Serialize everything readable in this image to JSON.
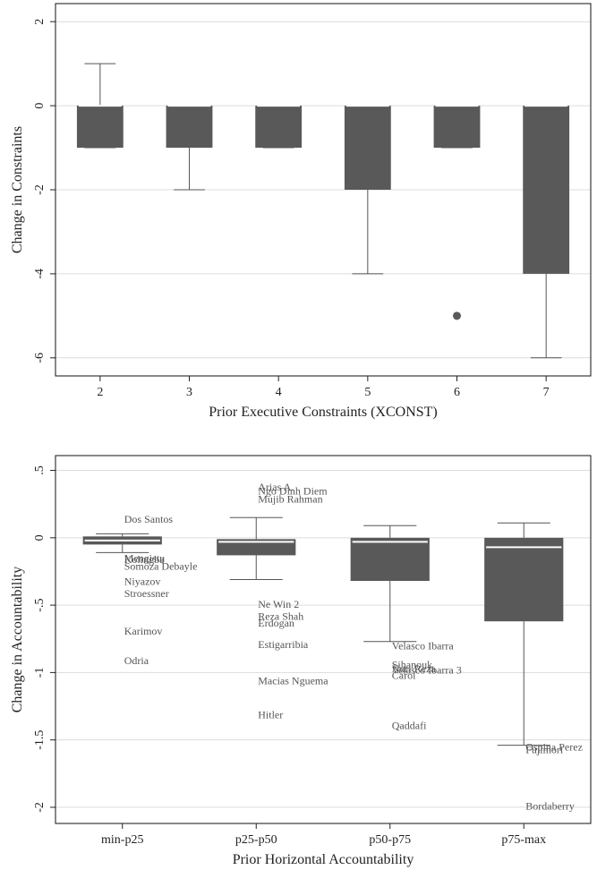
{
  "chart_data": [
    {
      "type": "box",
      "xlabel": "Prior Executive Constraints (XCONST)",
      "ylabel": "Change in Constraints",
      "categories": [
        "2",
        "3",
        "4",
        "5",
        "6",
        "7"
      ],
      "color": "#595959",
      "median_color": "#ffffff",
      "grid": true,
      "ylim": [
        -6.43,
        2.43
      ],
      "yticks": [
        -6,
        -4,
        -2,
        0,
        2
      ],
      "boxes": [
        {
          "low": -1,
          "q1": -1,
          "median": 0,
          "q3": 0,
          "high": 1,
          "outliers": []
        },
        {
          "low": -2,
          "q1": -1,
          "median": 0,
          "q3": 0,
          "high": 0,
          "outliers": []
        },
        {
          "low": -1,
          "q1": -1,
          "median": 0,
          "q3": 0,
          "high": 0,
          "outliers": []
        },
        {
          "low": -4,
          "q1": -2,
          "median": 0,
          "q3": 0,
          "high": 0,
          "outliers": []
        },
        {
          "low": -1,
          "q1": -1,
          "median": 0,
          "q3": 0,
          "high": 0,
          "outliers": [
            -5
          ]
        },
        {
          "low": -6,
          "q1": -4,
          "median": 0,
          "q3": 0,
          "high": 0,
          "outliers": []
        }
      ]
    },
    {
      "type": "box",
      "xlabel": "Prior Horizontal Accountability",
      "ylabel": "Change in Accountability",
      "categories": [
        "min-p25",
        "p25-p50",
        "p50-p75",
        "p75-max"
      ],
      "color": "#595959",
      "median_color": "#ffffff",
      "grid": true,
      "ylim": [
        -2.12,
        0.61
      ],
      "yticks": [
        {
          "value": 0.5,
          "label": ".5"
        },
        0,
        {
          "value": -0.5,
          "label": "-.5"
        },
        -1,
        -1.5,
        -2
      ],
      "boxes": [
        {
          "low": -0.11,
          "q1": -0.05,
          "median": -0.02,
          "q3": 0.01,
          "high": 0.03,
          "outliers": [
            {
              "label": "Dos Santos",
              "value": 0.13
            },
            {
              "label": "Mengistu",
              "value": -0.16
            },
            {
              "label": "Kolingba",
              "value": -0.17
            },
            {
              "label": "Somoza Debayle",
              "value": -0.22
            },
            {
              "label": "Niyazov",
              "value": -0.33
            },
            {
              "label": "Stroessner",
              "value": -0.42
            },
            {
              "label": "Karimov",
              "value": -0.7
            },
            {
              "label": "Odria",
              "value": -0.92
            }
          ]
        },
        {
          "low": -0.31,
          "q1": -0.13,
          "median": -0.03,
          "q3": -0.01,
          "high": 0.15,
          "outliers": [
            {
              "label": "Arias A.",
              "value": 0.37
            },
            {
              "label": "Ngo Dinh Diem",
              "value": 0.34
            },
            {
              "label": "Mujib Rahman",
              "value": 0.28
            },
            {
              "label": "Ne Win 2",
              "value": -0.5
            },
            {
              "label": "Reza Shah",
              "value": -0.59
            },
            {
              "label": "Erdogan",
              "value": -0.64
            },
            {
              "label": "Estigarribia",
              "value": -0.8
            },
            {
              "label": "Macias Nguema",
              "value": -1.07
            },
            {
              "label": "Hitler",
              "value": -1.32
            }
          ]
        },
        {
          "low": -0.77,
          "q1": -0.32,
          "median": -0.03,
          "q3": 0,
          "high": 0.09,
          "outliers": [
            {
              "label": "Velasco Ibarra",
              "value": -0.81
            },
            {
              "label": "Sihanouk",
              "value": -0.95
            },
            {
              "label": "Nuri Reza",
              "value": -0.98
            },
            {
              "label": "Velasco Ibarra 3",
              "value": -0.99
            },
            {
              "label": "Carol",
              "value": -1.03
            },
            {
              "label": "Qaddafi",
              "value": -1.4
            }
          ]
        },
        {
          "low": -1.54,
          "q1": -0.62,
          "median": -0.07,
          "q3": 0,
          "high": 0.11,
          "outliers": [
            {
              "label": "Ospina Perez",
              "value": -1.56
            },
            {
              "label": "Fujimori",
              "value": -1.58
            },
            {
              "label": "Bordaberry",
              "value": -2
            }
          ]
        }
      ]
    }
  ]
}
